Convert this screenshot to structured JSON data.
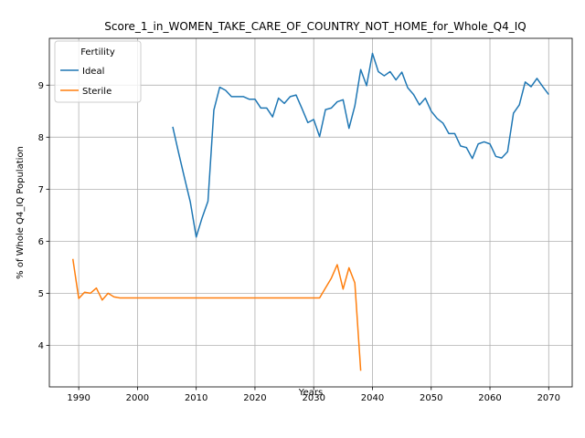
{
  "chart_data": {
    "type": "line",
    "title": "Score_1_in_WOMEN_TAKE_CARE_OF_COUNTRY_NOT_HOME_for_Whole_Q4_IQ",
    "xlabel": "Years",
    "ylabel": "% of Whole Q4_IQ Population",
    "xlim": [
      1985,
      2074
    ],
    "ylim": [
      3.2,
      9.9
    ],
    "xticks": [
      1990,
      2000,
      2010,
      2020,
      2030,
      2040,
      2050,
      2060,
      2070
    ],
    "yticks": [
      4,
      5,
      6,
      7,
      8,
      9
    ],
    "grid": true,
    "legend": {
      "title": "Fertility",
      "position": "top-left"
    },
    "series": [
      {
        "name": "Ideal",
        "color": "#1f77b4",
        "x": [
          2006,
          2007,
          2008,
          2009,
          2010,
          2011,
          2012,
          2013,
          2014,
          2015,
          2016,
          2017,
          2018,
          2019,
          2020,
          2021,
          2022,
          2023,
          2024,
          2025,
          2026,
          2027,
          2028,
          2029,
          2030,
          2031,
          2032,
          2033,
          2034,
          2035,
          2036,
          2037,
          2038,
          2039,
          2040,
          2041,
          2042,
          2043,
          2044,
          2045,
          2046,
          2047,
          2048,
          2049,
          2050,
          2051,
          2052,
          2053,
          2054,
          2055,
          2056,
          2057,
          2058,
          2059,
          2060,
          2061,
          2062,
          2063,
          2064,
          2065,
          2066,
          2067,
          2068,
          2069,
          2070
        ],
        "y": [
          8.2,
          7.7,
          7.22,
          6.75,
          6.08,
          6.45,
          6.77,
          8.52,
          8.96,
          8.9,
          8.78,
          8.78,
          8.78,
          8.73,
          8.73,
          8.56,
          8.56,
          8.39,
          8.75,
          8.65,
          8.78,
          8.81,
          8.55,
          8.28,
          8.34,
          8.01,
          8.53,
          8.56,
          8.68,
          8.72,
          8.17,
          8.6,
          9.3,
          8.99,
          9.61,
          9.26,
          9.18,
          9.26,
          9.1,
          9.25,
          8.95,
          8.82,
          8.62,
          8.75,
          8.5,
          8.36,
          8.27,
          8.07,
          8.07,
          7.83,
          7.8,
          7.59,
          7.87,
          7.91,
          7.87,
          7.63,
          7.6,
          7.72,
          8.46,
          8.62,
          9.06,
          8.97,
          9.13,
          8.97,
          8.82
        ]
      },
      {
        "name": "Sterile",
        "color": "#ff7f0e",
        "x": [
          1989,
          1990,
          1991,
          1992,
          1993,
          1994,
          1995,
          1996,
          1997,
          1998,
          1999,
          2000,
          2001,
          2002,
          2003,
          2004,
          2005,
          2006,
          2007,
          2008,
          2009,
          2010,
          2011,
          2012,
          2013,
          2014,
          2015,
          2016,
          2017,
          2018,
          2019,
          2020,
          2021,
          2022,
          2023,
          2024,
          2025,
          2026,
          2027,
          2028,
          2029,
          2030,
          2031,
          2032,
          2033,
          2034,
          2035,
          2036,
          2037,
          2038
        ],
        "y": [
          5.66,
          4.9,
          5.02,
          5.0,
          5.1,
          4.87,
          5.0,
          4.93,
          4.91,
          4.91,
          4.91,
          4.91,
          4.91,
          4.91,
          4.91,
          4.91,
          4.91,
          4.91,
          4.91,
          4.91,
          4.91,
          4.91,
          4.91,
          4.91,
          4.91,
          4.91,
          4.91,
          4.91,
          4.91,
          4.91,
          4.91,
          4.91,
          4.91,
          4.91,
          4.91,
          4.91,
          4.91,
          4.91,
          4.91,
          4.91,
          4.91,
          4.91,
          4.91,
          5.1,
          5.29,
          5.55,
          5.08,
          5.49,
          5.2,
          3.51
        ]
      }
    ]
  }
}
